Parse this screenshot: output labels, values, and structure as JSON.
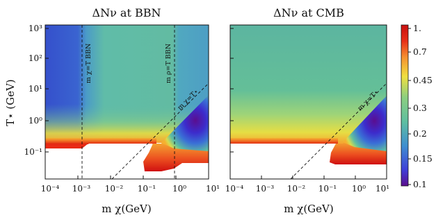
{
  "chart_data": [
    {
      "type": "heatmap",
      "title": "ΔNν at BBN",
      "xlabel": "m χ(GeV)",
      "ylabel": "T⋆ (GeV)",
      "x_scale": "log",
      "y_scale": "log",
      "xlim": [
        0.0001,
        10
      ],
      "ylim": [
        0.01,
        1000
      ],
      "x_ticks": [
        "10⁻⁴",
        "10⁻³",
        "10⁻²",
        "10⁻¹",
        "10⁰",
        "10¹"
      ],
      "y_ticks": [
        "10⁻¹",
        "10⁰",
        "10¹",
        "10²",
        "10³"
      ],
      "reference_lines": [
        {
          "label": "m χ=T BBN",
          "type": "vertical",
          "x": 0.001
        },
        {
          "label": "m ρ=T BBN",
          "type": "vertical",
          "x": 0.9
        },
        {
          "label": "m χ=T⋆",
          "type": "diagonal",
          "relation": "y = x"
        }
      ],
      "regions": [
        {
          "x_range": [
            0.0001,
            0.001
          ],
          "y_range": [
            1,
            1000
          ],
          "approx_value": 0.16
        },
        {
          "x_range": [
            0.001,
            0.9
          ],
          "y_range": [
            1,
            1000
          ],
          "approx_value": 0.3
        },
        {
          "x_range": [
            0.9,
            10
          ],
          "y_range": [
            1,
            1000
          ],
          "approx_value": 0.26
        },
        {
          "x_range": [
            0.0001,
            0.2
          ],
          "y_range": [
            0.17,
            0.3
          ],
          "approx_value": 1.0
        },
        {
          "x_range": [
            1,
            10
          ],
          "y_range": [
            0.1,
            10
          ],
          "approx_value": 0.1
        },
        {
          "x_range": [
            0.1,
            10
          ],
          "y_range": [
            0.02,
            0.05
          ],
          "approx_value": 1.0
        }
      ]
    },
    {
      "type": "heatmap",
      "title": "ΔNν at CMB",
      "xlabel": "m χ(GeV)",
      "x_scale": "log",
      "y_scale": "log",
      "xlim": [
        0.0001,
        10
      ],
      "ylim": [
        0.01,
        1000
      ],
      "x_ticks": [
        "10⁻⁴",
        "10⁻³",
        "10⁻²",
        "10⁻¹",
        "10⁰",
        "10¹"
      ],
      "reference_lines": [
        {
          "label": "m χ=T⋆",
          "type": "diagonal",
          "relation": "y = x"
        }
      ],
      "regions": [
        {
          "x_range": [
            0.0001,
            10
          ],
          "y_range": [
            1,
            1000
          ],
          "approx_value": 0.28
        },
        {
          "x_range": [
            0.0001,
            0.2
          ],
          "y_range": [
            0.17,
            0.3
          ],
          "approx_value": 1.0
        },
        {
          "x_range": [
            1,
            10
          ],
          "y_range": [
            0.1,
            10
          ],
          "approx_value": 0.1
        },
        {
          "x_range": [
            0.2,
            10
          ],
          "y_range": [
            0.02,
            0.05
          ],
          "approx_value": 1.0
        }
      ]
    }
  ],
  "colorbar": {
    "tick_labels": [
      "1.",
      "0.7",
      "0.45",
      "0.3",
      "0.2",
      "0.15",
      "0.1"
    ],
    "range": [
      0.1,
      1.0
    ],
    "colormap": [
      "#5b0e8e",
      "#3f3fd8",
      "#3f8fd0",
      "#5fbfa0",
      "#8ccf80",
      "#f0e040",
      "#f59030",
      "#e83018",
      "#c81010"
    ]
  }
}
